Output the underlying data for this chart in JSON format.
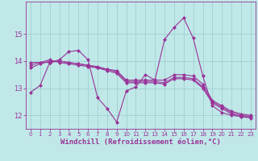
{
  "xlabel": "Windchill (Refroidissement éolien,°C)",
  "xlim": [
    -0.5,
    23.5
  ],
  "ylim": [
    11.5,
    16.2
  ],
  "yticks": [
    12,
    13,
    14,
    15
  ],
  "xticks": [
    0,
    1,
    2,
    3,
    4,
    5,
    6,
    7,
    8,
    9,
    10,
    11,
    12,
    13,
    14,
    15,
    16,
    17,
    18,
    19,
    20,
    21,
    22,
    23
  ],
  "bg_color": "#c0e8e8",
  "line_color": "#993399",
  "grid_color": "#99cccc",
  "lines": [
    [
      0,
      12.85,
      1,
      13.1,
      2,
      13.95,
      3,
      14.05,
      4,
      14.35,
      5,
      14.4,
      6,
      14.05,
      7,
      12.65,
      8,
      12.25,
      9,
      11.75,
      10,
      12.9,
      11,
      13.05,
      12,
      13.5,
      13,
      13.3,
      14,
      14.8,
      15,
      15.25,
      16,
      15.6,
      17,
      14.85,
      18,
      13.45,
      19,
      12.35,
      20,
      12.1,
      21,
      12.0,
      22,
      11.95,
      23,
      11.95
    ],
    [
      0,
      13.95,
      1,
      13.95,
      2,
      14.05,
      3,
      13.95,
      4,
      13.9,
      5,
      13.85,
      6,
      13.8,
      7,
      13.75,
      8,
      13.7,
      9,
      13.65,
      10,
      13.3,
      11,
      13.3,
      12,
      13.3,
      13,
      13.3,
      14,
      13.3,
      15,
      13.5,
      16,
      13.5,
      17,
      13.45,
      18,
      13.15,
      19,
      12.55,
      20,
      12.35,
      21,
      12.15,
      22,
      12.05,
      23,
      12.0
    ],
    [
      0,
      13.85,
      1,
      13.95,
      2,
      13.95,
      3,
      14.0,
      4,
      13.95,
      5,
      13.9,
      6,
      13.85,
      7,
      13.8,
      8,
      13.7,
      9,
      13.6,
      10,
      13.25,
      11,
      13.25,
      12,
      13.25,
      13,
      13.25,
      14,
      13.2,
      15,
      13.4,
      16,
      13.4,
      17,
      13.35,
      18,
      13.05,
      19,
      12.5,
      20,
      12.3,
      21,
      12.1,
      22,
      12.0,
      23,
      11.95
    ],
    [
      0,
      13.75,
      1,
      13.9,
      2,
      14.0,
      3,
      14.0,
      4,
      13.95,
      5,
      13.9,
      6,
      13.85,
      7,
      13.75,
      8,
      13.65,
      9,
      13.55,
      10,
      13.2,
      11,
      13.2,
      12,
      13.2,
      13,
      13.2,
      14,
      13.15,
      15,
      13.35,
      16,
      13.35,
      17,
      13.3,
      18,
      13.0,
      19,
      12.45,
      20,
      12.25,
      21,
      12.05,
      22,
      11.95,
      23,
      11.9
    ]
  ],
  "marker": "D",
  "markersize": 2.0,
  "linewidth": 0.8,
  "xlabel_fontsize": 6.5,
  "xtick_fontsize": 5.0,
  "ytick_fontsize": 6.0
}
